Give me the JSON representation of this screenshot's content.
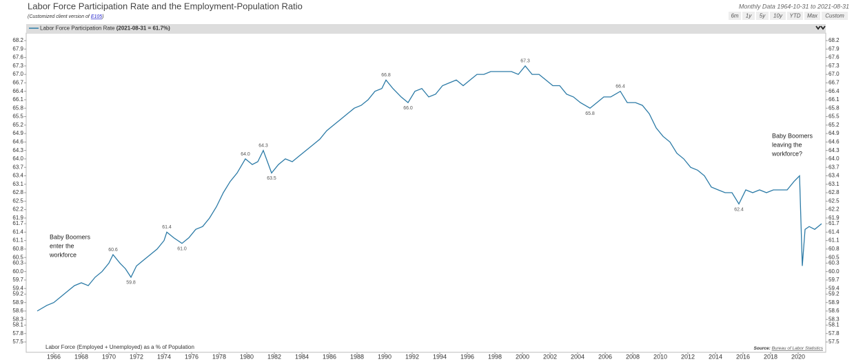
{
  "header": {
    "title": "Labor Force Participation Rate and the Employment-Population Ratio",
    "subtitle": [
      "(Customized client version of ",
      "E105",
      ")"
    ],
    "range_text": "Monthly Data 1964-10-31 to 2021-08-31",
    "buttons": [
      "6m",
      "1y",
      "5y",
      "10y",
      "YTD",
      "Max",
      "Custom"
    ]
  },
  "chart_data": {
    "type": "line",
    "series": [
      {
        "name": "Labor Force Participation Rate",
        "legend_value": "(2021-08-31 = 61.7%)",
        "color": "#2b7aa6",
        "x": [
          1964.8,
          1965.5,
          1966,
          1966.5,
          1967,
          1967.5,
          1968,
          1968.5,
          1969,
          1969.5,
          1970,
          1970.3,
          1970.8,
          1971.2,
          1971.6,
          1972,
          1972.5,
          1973,
          1973.5,
          1974,
          1974.2,
          1974.7,
          1975.3,
          1975.8,
          1976.3,
          1976.8,
          1977.3,
          1977.8,
          1978.3,
          1978.8,
          1979.3,
          1979.9,
          1980.4,
          1980.8,
          1981.2,
          1981.8,
          1982.3,
          1982.8,
          1983.3,
          1983.8,
          1984.3,
          1984.8,
          1985.3,
          1985.8,
          1986.3,
          1986.8,
          1987.3,
          1987.8,
          1988.3,
          1988.8,
          1989.3,
          1989.8,
          1990.1,
          1990.6,
          1991.2,
          1991.7,
          1992.2,
          1992.7,
          1993.2,
          1993.7,
          1994.2,
          1994.7,
          1995.2,
          1995.7,
          1996.2,
          1996.7,
          1997.2,
          1997.7,
          1998.2,
          1998.7,
          1999.2,
          1999.7,
          2000.2,
          2000.7,
          2001.2,
          2001.7,
          2002.2,
          2002.7,
          2003.2,
          2003.7,
          2004.2,
          2004.9,
          2005.4,
          2005.9,
          2006.4,
          2007.1,
          2007.6,
          2008.2,
          2008.7,
          2009.2,
          2009.7,
          2010.2,
          2010.7,
          2011.2,
          2011.7,
          2012.2,
          2012.7,
          2013.2,
          2013.7,
          2014.2,
          2014.7,
          2015.2,
          2015.7,
          2016.2,
          2016.7,
          2017.2,
          2017.7,
          2018.2,
          2018.7,
          2019.2,
          2019.7,
          2020.1,
          2020.3,
          2020.5,
          2020.8,
          2021.2,
          2021.7
        ],
        "values": [
          58.6,
          58.8,
          58.9,
          59.1,
          59.3,
          59.5,
          59.6,
          59.5,
          59.8,
          60.0,
          60.3,
          60.6,
          60.3,
          60.1,
          59.8,
          60.2,
          60.4,
          60.6,
          60.8,
          61.1,
          61.4,
          61.2,
          61.0,
          61.2,
          61.5,
          61.6,
          61.9,
          62.3,
          62.8,
          63.2,
          63.5,
          64.0,
          63.8,
          63.9,
          64.3,
          63.5,
          63.8,
          64.0,
          63.9,
          64.1,
          64.3,
          64.5,
          64.7,
          65.0,
          65.2,
          65.4,
          65.6,
          65.8,
          65.9,
          66.1,
          66.4,
          66.5,
          66.8,
          66.5,
          66.2,
          66.0,
          66.4,
          66.5,
          66.2,
          66.3,
          66.6,
          66.7,
          66.8,
          66.6,
          66.8,
          67.0,
          67.0,
          67.1,
          67.1,
          67.1,
          67.1,
          67.0,
          67.3,
          67.0,
          67.0,
          66.8,
          66.6,
          66.6,
          66.3,
          66.2,
          66.0,
          65.8,
          66.0,
          66.2,
          66.2,
          66.4,
          66.0,
          66.0,
          65.9,
          65.6,
          65.1,
          64.8,
          64.6,
          64.2,
          64.0,
          63.7,
          63.6,
          63.4,
          63.0,
          62.9,
          62.8,
          62.8,
          62.4,
          62.9,
          62.8,
          62.9,
          62.8,
          62.9,
          62.9,
          62.9,
          63.2,
          63.4,
          60.2,
          61.5,
          61.6,
          61.5,
          61.7
        ]
      }
    ],
    "annotations": {
      "x": [
        1970.3,
        1971.6,
        1974.2,
        1975.3,
        1979.9,
        1981.2,
        1981.8,
        1990.1,
        1991.7,
        2000.2,
        2004.9,
        2007.1,
        2015.7
      ],
      "values": [
        60.6,
        59.8,
        61.4,
        61.0,
        64.0,
        64.3,
        63.5,
        66.8,
        66.0,
        67.3,
        65.8,
        66.4,
        62.4
      ],
      "value_labels": [
        "60.6",
        "59.8",
        "61.4",
        "61.0",
        "64.0",
        "64.3",
        "63.5",
        "66.8",
        "66.0",
        "67.3",
        "65.8",
        "66.4",
        "62.4"
      ]
    },
    "notes": [
      [
        "Baby Boomers",
        "enter the",
        "workforce"
      ],
      [
        "Baby Boomers",
        "leaving the",
        "workforce?"
      ]
    ],
    "footnote": "Labor Force (Employed + Unemployed) as a % of Population",
    "source": [
      "Source:",
      "Bureau of Labor Statistics"
    ],
    "xlim": [
      1964,
      2022
    ],
    "xticks": [
      1966,
      1968,
      1970,
      1972,
      1974,
      1976,
      1978,
      1980,
      1982,
      1984,
      1986,
      1988,
      1990,
      1992,
      1994,
      1996,
      1998,
      2000,
      2002,
      2004,
      2006,
      2008,
      2010,
      2012,
      2014,
      2016,
      2018,
      2020
    ],
    "ylim": [
      57.5,
      68.2
    ],
    "yticks": [
      57.5,
      57.8,
      58.1,
      58.3,
      58.6,
      58.9,
      59.2,
      59.4,
      59.7,
      {
        "value": 60,
        "label": "60.0"
      },
      60.3,
      60.5,
      60.8,
      61.1,
      61.4,
      61.7,
      61.9,
      62.2,
      62.5,
      62.8,
      63.1,
      63.4,
      63.7,
      {
        "value": 64,
        "label": "64.0"
      },
      64.3,
      64.6,
      64.9,
      65.2,
      65.5,
      65.8,
      66.1,
      66.4,
      66.7,
      {
        "value": 67,
        "label": "67.0"
      },
      67.3,
      67.6,
      67.9,
      68.2
    ]
  }
}
